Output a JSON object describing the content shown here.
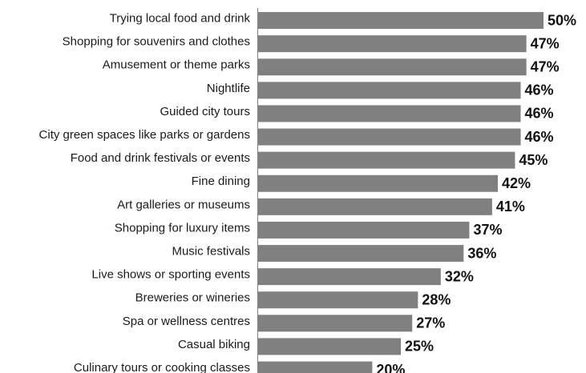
{
  "chart_data": {
    "type": "bar",
    "orientation": "horizontal",
    "categories": [
      "Trying local food and drink",
      "Shopping for souvenirs and clothes",
      "Amusement or theme parks",
      "Nightlife",
      "Guided city tours",
      "City green spaces like parks or gardens",
      "Food and drink festivals or events",
      "Fine dining",
      "Art galleries or museums",
      "Shopping for luxury items",
      "Music festivals",
      "Live shows or sporting events",
      "Breweries or wineries",
      "Spa or wellness centres",
      "Casual biking",
      "Culinary tours or cooking classes"
    ],
    "values": [
      50,
      47,
      47,
      46,
      46,
      46,
      45,
      42,
      41,
      37,
      36,
      32,
      28,
      27,
      25,
      20
    ],
    "value_labels": [
      "50%",
      "47%",
      "47%",
      "46%",
      "46%",
      "46%",
      "45%",
      "42%",
      "41%",
      "37%",
      "36%",
      "32%",
      "28%",
      "27%",
      "25%",
      "20%"
    ],
    "xlim": [
      0,
      50
    ],
    "bar_color": "#808080",
    "axis_color": "#808080",
    "grid": false,
    "legend": "none"
  }
}
